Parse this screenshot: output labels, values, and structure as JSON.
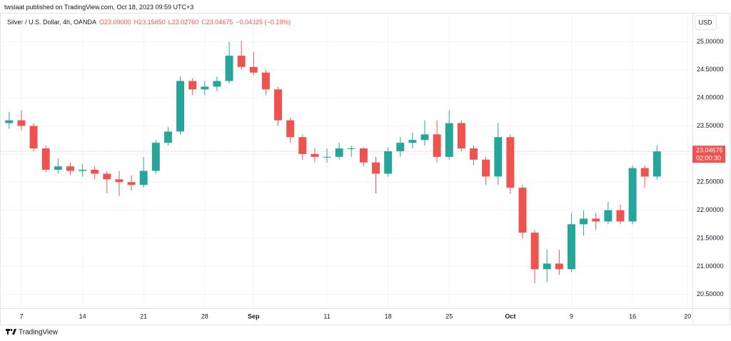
{
  "publish_note": "twslaat published on TradingView.com, Oct 18, 2023 09:59 UTC+3",
  "brand": "TradingView",
  "chart_data": {
    "type": "candlestick",
    "title": "Silver / U.S. Dollar, 4h, OANDA",
    "ohlc_legend": [
      "O23.09000",
      "H23.15650",
      "L23.02760",
      "C23.04675",
      "−0.04325 (−0.19%)"
    ],
    "currency": "USD",
    "up_color": "#26a69a",
    "down_color": "#ef5350",
    "grid": true,
    "open": [
      23.55,
      23.6,
      23.5,
      23.1,
      22.72,
      22.78,
      22.7,
      22.72,
      22.65,
      22.55,
      22.5,
      22.45,
      22.7,
      23.2,
      23.4,
      24.3,
      24.15,
      24.2,
      24.3,
      24.75,
      24.55,
      24.45,
      24.15,
      23.6,
      23.3,
      23.0,
      22.95,
      22.95,
      23.1,
      23.1,
      22.85,
      22.65,
      23.05,
      23.2,
      23.25,
      23.35,
      22.95,
      23.55,
      23.1,
      22.9,
      22.6,
      23.3,
      22.4,
      21.6,
      20.95,
      21.05,
      20.95,
      21.75,
      21.85,
      21.8,
      22.0,
      21.8,
      22.75,
      22.6
    ],
    "high": [
      23.75,
      23.78,
      23.55,
      23.15,
      22.92,
      22.85,
      22.82,
      22.78,
      22.7,
      22.7,
      22.62,
      22.95,
      23.25,
      23.48,
      24.38,
      24.35,
      24.3,
      24.38,
      25.0,
      25.02,
      24.82,
      24.5,
      24.2,
      23.65,
      23.35,
      23.1,
      23.1,
      23.2,
      23.15,
      23.12,
      22.95,
      23.12,
      23.3,
      23.38,
      23.6,
      23.6,
      23.78,
      23.6,
      23.15,
      22.95,
      23.55,
      23.35,
      22.45,
      21.65,
      21.3,
      21.3,
      21.95,
      22.0,
      21.95,
      22.15,
      22.1,
      22.8,
      22.8,
      23.15
    ],
    "low": [
      23.45,
      23.42,
      23.05,
      22.68,
      22.65,
      22.62,
      22.6,
      22.55,
      22.3,
      22.25,
      22.35,
      22.4,
      22.65,
      23.15,
      23.35,
      24.05,
      24.05,
      24.12,
      24.25,
      24.5,
      24.4,
      24.05,
      23.5,
      23.2,
      22.9,
      22.85,
      22.85,
      22.9,
      22.95,
      22.78,
      22.3,
      22.6,
      22.95,
      23.1,
      23.15,
      22.85,
      22.9,
      23.05,
      22.8,
      22.45,
      22.45,
      22.3,
      21.5,
      20.7,
      20.72,
      20.85,
      20.9,
      21.55,
      21.65,
      21.75,
      21.75,
      21.75,
      22.4,
      22.55
    ],
    "close": [
      23.6,
      23.5,
      23.1,
      22.72,
      22.78,
      22.7,
      22.72,
      22.65,
      22.55,
      22.5,
      22.45,
      22.7,
      23.2,
      23.4,
      24.3,
      24.15,
      24.2,
      24.3,
      24.75,
      24.55,
      24.45,
      24.15,
      23.6,
      23.3,
      23.0,
      22.95,
      22.95,
      23.1,
      23.1,
      22.85,
      22.65,
      23.05,
      23.2,
      23.25,
      23.35,
      22.95,
      23.55,
      23.1,
      22.9,
      22.6,
      23.3,
      22.4,
      21.6,
      20.95,
      21.05,
      20.95,
      21.75,
      21.85,
      21.8,
      22.0,
      21.8,
      22.75,
      22.6,
      23.04675
    ],
    "last_price": 23.04675,
    "countdown": "02:00:30",
    "xlim": [
      -0.75,
      55.9
    ],
    "xticks": [
      {
        "value": 1,
        "label": "7"
      },
      {
        "value": 6,
        "label": "14"
      },
      {
        "value": 11,
        "label": "21"
      },
      {
        "value": 16,
        "label": "28"
      },
      {
        "value": 20,
        "label": "Sep"
      },
      {
        "value": 26,
        "label": "11"
      },
      {
        "value": 31,
        "label": "18"
      },
      {
        "value": 36,
        "label": "25"
      },
      {
        "value": 41,
        "label": "Oct"
      },
      {
        "value": 46,
        "label": "9"
      },
      {
        "value": 51,
        "label": "16"
      },
      {
        "value": 55.5,
        "label": "20"
      }
    ],
    "ylim": [
      20.256,
      25.513
    ],
    "yticks": [
      {
        "value": 20.5,
        "label": "20.50000"
      },
      {
        "value": 21,
        "label": "21.00000"
      },
      {
        "value": 21.5,
        "label": "21.50000"
      },
      {
        "value": 22,
        "label": "22.00000"
      },
      {
        "value": 22.5,
        "label": "22.50000"
      },
      {
        "value": 23,
        "label": "23.00000"
      },
      {
        "value": 23.5,
        "label": "23.50000"
      },
      {
        "value": 24,
        "label": "24.00000"
      },
      {
        "value": 24.5,
        "label": "24.50000"
      },
      {
        "value": 25,
        "label": "25.00000"
      }
    ]
  }
}
